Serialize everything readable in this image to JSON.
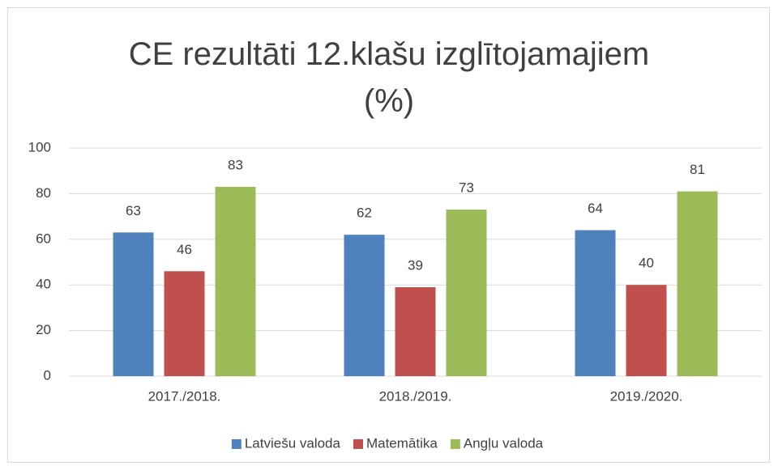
{
  "chart_data": {
    "type": "bar",
    "title": "CE rezultāti 12.klašu izglītojamajiem (%)",
    "categories": [
      "2017./2018.",
      "2018./2019.",
      "2019./2020."
    ],
    "series": [
      {
        "name": "Latviešu valoda",
        "color": "#4f81bd",
        "values": [
          63,
          62,
          64
        ]
      },
      {
        "name": "Matemātika",
        "color": "#c0504d",
        "values": [
          46,
          39,
          40
        ]
      },
      {
        "name": "Angļu valoda",
        "color": "#9bbb59",
        "values": [
          83,
          73,
          81
        ]
      }
    ],
    "ylim": [
      0,
      100
    ],
    "yticks": [
      0,
      20,
      40,
      60,
      80,
      100
    ],
    "grid": true,
    "legend": "bottom"
  }
}
